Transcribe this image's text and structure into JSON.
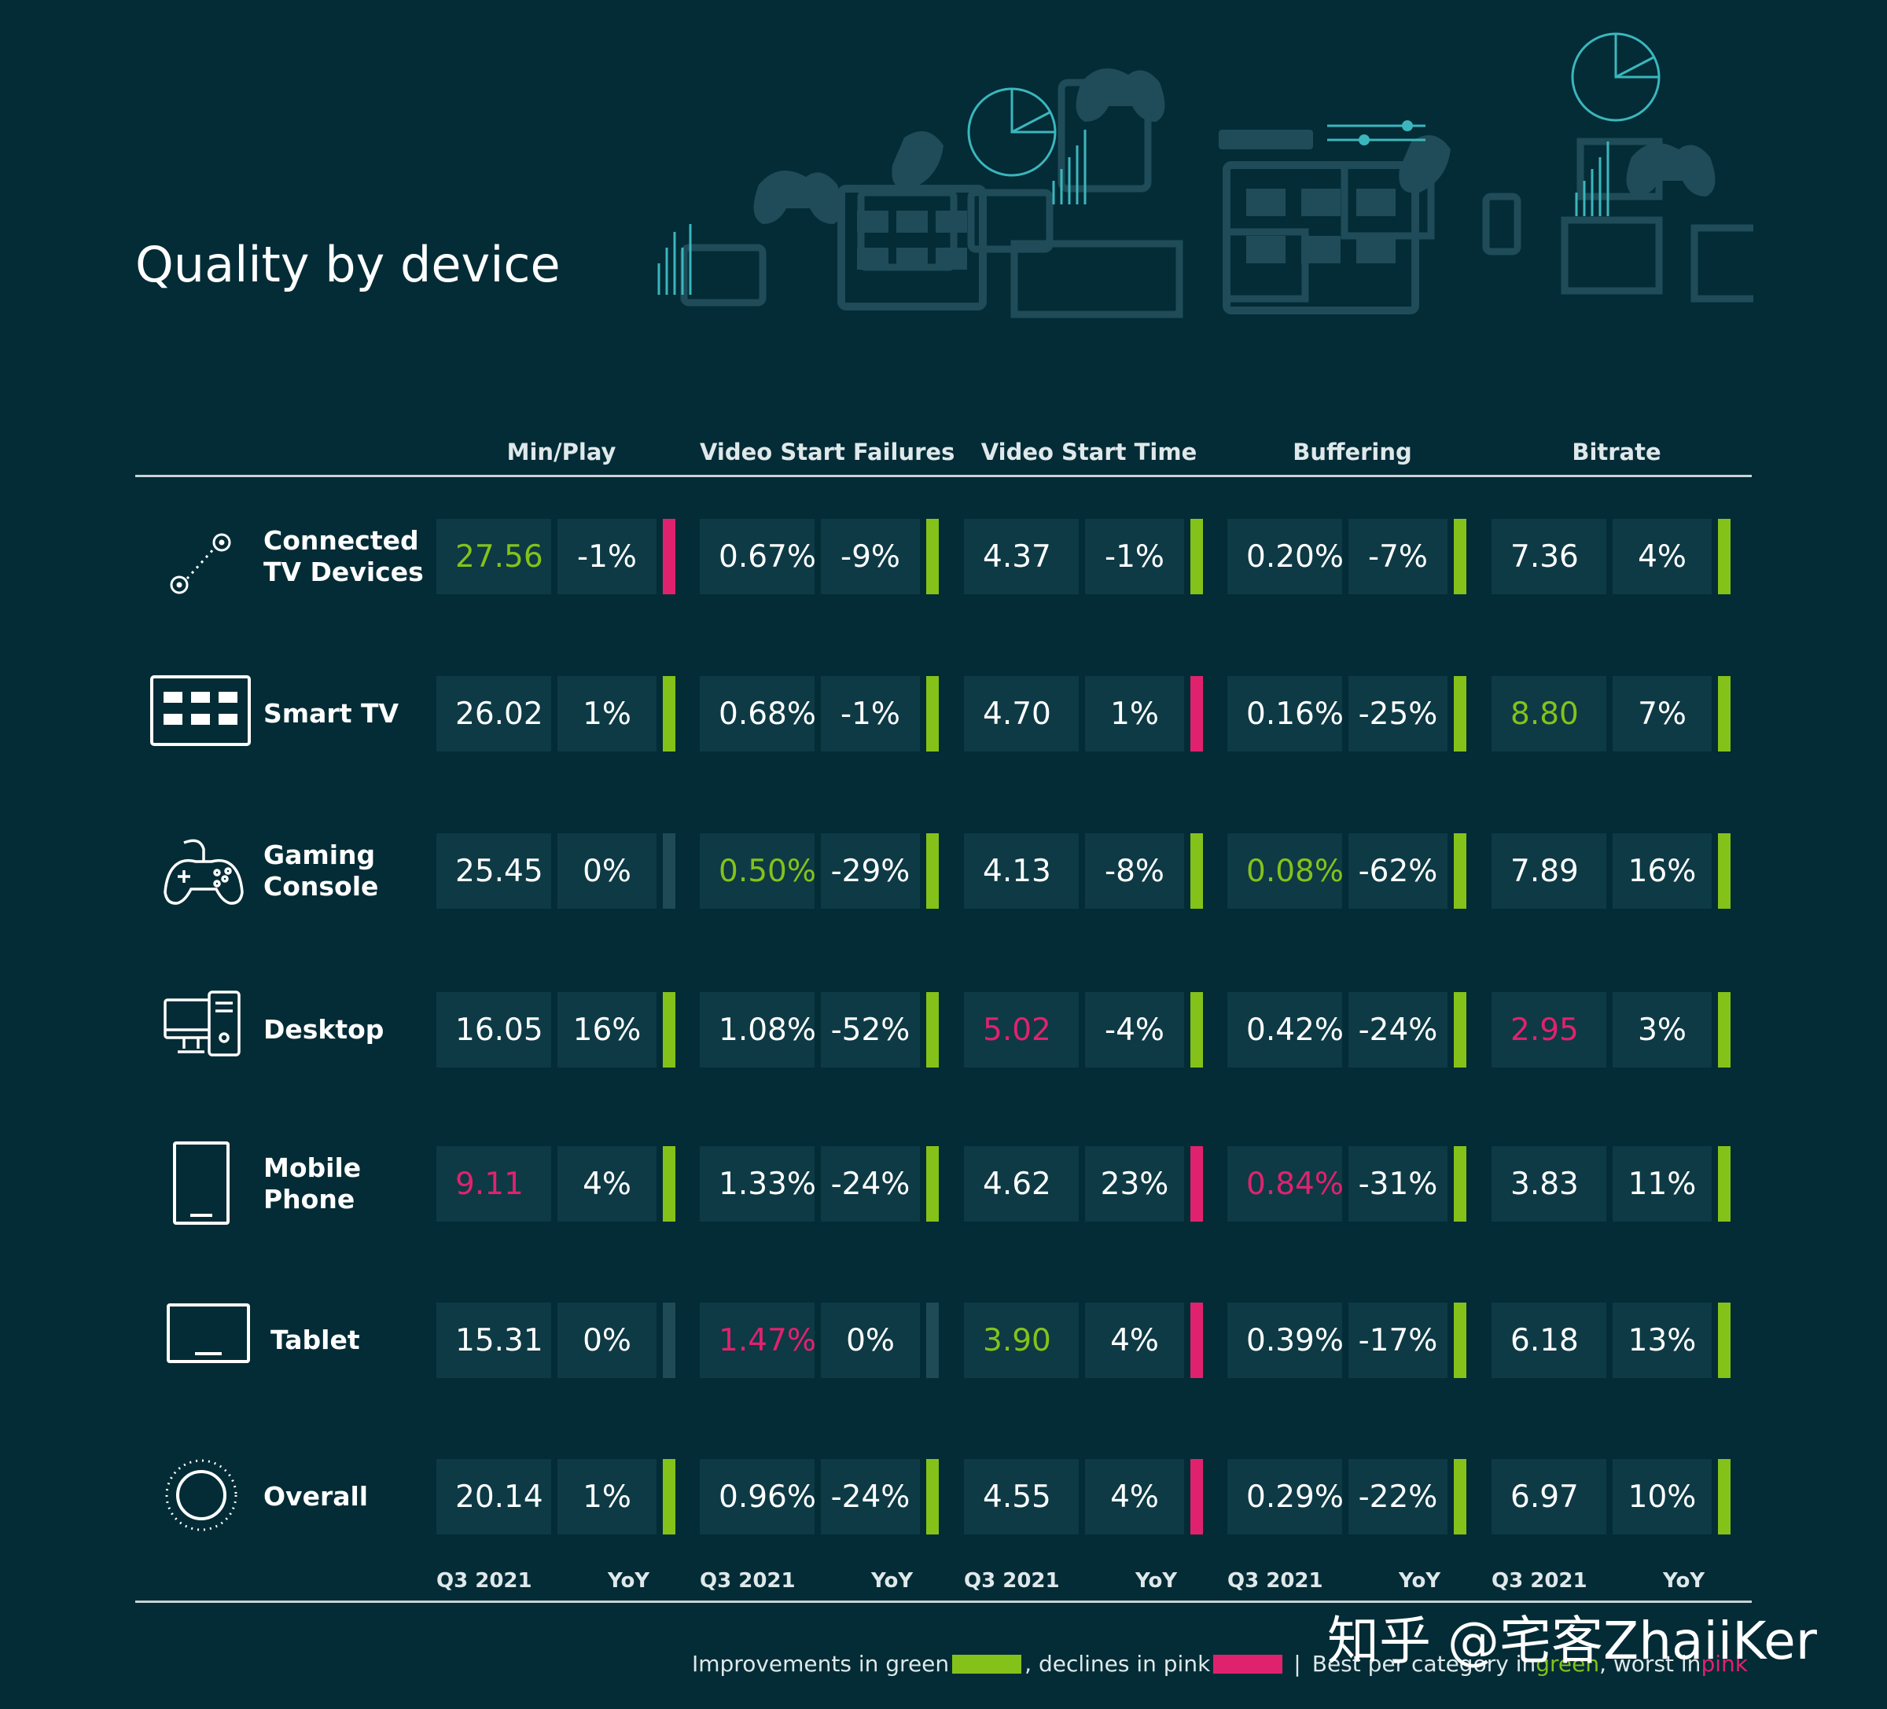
{
  "title": "Quality by device",
  "colors": {
    "background": "#032c36",
    "cell": "#0d3a45",
    "improve": "#84c21a",
    "decline": "#e0226e",
    "neutral": "#1e4b56"
  },
  "metrics": [
    {
      "key": "minplay",
      "label": "Min/Play"
    },
    {
      "key": "vsf",
      "label": "Video Start Failures"
    },
    {
      "key": "vst",
      "label": "Video Start Time"
    },
    {
      "key": "buf",
      "label": "Buffering"
    },
    {
      "key": "bitrate",
      "label": "Bitrate"
    }
  ],
  "footer": {
    "value_label": "Q3 2021",
    "change_label": "YoY"
  },
  "legend": {
    "improve_text": "Improvements in green",
    "decline_text": ", declines in pink",
    "separator": "|",
    "best_text": "Best per category in ",
    "best_word": "green",
    "worst_text": ", worst in ",
    "worst_word": "pink"
  },
  "watermark": "知乎 @宅客ZhaiiKer",
  "icons": [
    "connected-tv-icon",
    "smart-tv-icon",
    "gamepad-icon",
    "desktop-icon",
    "mobile-phone-icon",
    "tablet-icon",
    "overall-icon"
  ],
  "chart_data": {
    "type": "table",
    "title": "Quality by device",
    "columns": [
      "Min/Play",
      "Video Start Failures",
      "Video Start Time",
      "Buffering",
      "Bitrate"
    ],
    "subcolumns": [
      "Q3 2021",
      "YoY"
    ],
    "rows": [
      {
        "device": [
          "Connected",
          "TV Devices"
        ],
        "cells": [
          {
            "value": "27.56",
            "yoy": "-1%",
            "trend": "decline",
            "rank": "best"
          },
          {
            "value": "0.67%",
            "yoy": "-9%",
            "trend": "improve",
            "rank": ""
          },
          {
            "value": "4.37",
            "yoy": "-1%",
            "trend": "improve",
            "rank": ""
          },
          {
            "value": "0.20%",
            "yoy": "-7%",
            "trend": "improve",
            "rank": ""
          },
          {
            "value": "7.36",
            "yoy": "4%",
            "trend": "improve",
            "rank": ""
          }
        ]
      },
      {
        "device": [
          "Smart TV"
        ],
        "cells": [
          {
            "value": "26.02",
            "yoy": "1%",
            "trend": "improve",
            "rank": ""
          },
          {
            "value": "0.68%",
            "yoy": "-1%",
            "trend": "improve",
            "rank": ""
          },
          {
            "value": "4.70",
            "yoy": "1%",
            "trend": "decline",
            "rank": ""
          },
          {
            "value": "0.16%",
            "yoy": "-25%",
            "trend": "improve",
            "rank": ""
          },
          {
            "value": "8.80",
            "yoy": "7%",
            "trend": "improve",
            "rank": "best"
          }
        ]
      },
      {
        "device": [
          "Gaming",
          "Console"
        ],
        "cells": [
          {
            "value": "25.45",
            "yoy": "0%",
            "trend": "neutral",
            "rank": ""
          },
          {
            "value": "0.50%",
            "yoy": "-29%",
            "trend": "improve",
            "rank": "best"
          },
          {
            "value": "4.13",
            "yoy": "-8%",
            "trend": "improve",
            "rank": ""
          },
          {
            "value": "0.08%",
            "yoy": "-62%",
            "trend": "improve",
            "rank": "best"
          },
          {
            "value": "7.89",
            "yoy": "16%",
            "trend": "improve",
            "rank": ""
          }
        ]
      },
      {
        "device": [
          "Desktop"
        ],
        "cells": [
          {
            "value": "16.05",
            "yoy": "16%",
            "trend": "improve",
            "rank": ""
          },
          {
            "value": "1.08%",
            "yoy": "-52%",
            "trend": "improve",
            "rank": ""
          },
          {
            "value": "5.02",
            "yoy": "-4%",
            "trend": "improve",
            "rank": "worst"
          },
          {
            "value": "0.42%",
            "yoy": "-24%",
            "trend": "improve",
            "rank": ""
          },
          {
            "value": "2.95",
            "yoy": "3%",
            "trend": "improve",
            "rank": "worst"
          }
        ]
      },
      {
        "device": [
          "Mobile",
          "Phone"
        ],
        "cells": [
          {
            "value": "9.11",
            "yoy": "4%",
            "trend": "improve",
            "rank": "worst"
          },
          {
            "value": "1.33%",
            "yoy": "-24%",
            "trend": "improve",
            "rank": ""
          },
          {
            "value": "4.62",
            "yoy": "23%",
            "trend": "decline",
            "rank": ""
          },
          {
            "value": "0.84%",
            "yoy": "-31%",
            "trend": "improve",
            "rank": "worst"
          },
          {
            "value": "3.83",
            "yoy": "11%",
            "trend": "improve",
            "rank": ""
          }
        ]
      },
      {
        "device": [
          "Tablet"
        ],
        "cells": [
          {
            "value": "15.31",
            "yoy": "0%",
            "trend": "neutral",
            "rank": ""
          },
          {
            "value": "1.47%",
            "yoy": "0%",
            "trend": "neutral",
            "rank": "worst"
          },
          {
            "value": "3.90",
            "yoy": "4%",
            "trend": "decline",
            "rank": "best"
          },
          {
            "value": "0.39%",
            "yoy": "-17%",
            "trend": "improve",
            "rank": ""
          },
          {
            "value": "6.18",
            "yoy": "13%",
            "trend": "improve",
            "rank": ""
          }
        ]
      },
      {
        "device": [
          "Overall"
        ],
        "cells": [
          {
            "value": "20.14",
            "yoy": "1%",
            "trend": "improve",
            "rank": ""
          },
          {
            "value": "0.96%",
            "yoy": "-24%",
            "trend": "improve",
            "rank": ""
          },
          {
            "value": "4.55",
            "yoy": "4%",
            "trend": "decline",
            "rank": ""
          },
          {
            "value": "0.29%",
            "yoy": "-22%",
            "trend": "improve",
            "rank": ""
          },
          {
            "value": "6.97",
            "yoy": "10%",
            "trend": "improve",
            "rank": ""
          }
        ]
      }
    ]
  }
}
